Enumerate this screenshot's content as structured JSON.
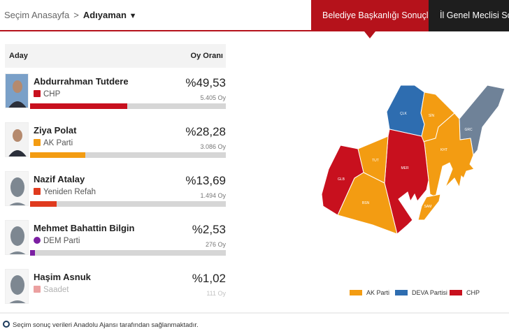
{
  "breadcrumb": {
    "home": "Seçim Anasayfa",
    "separator": ">",
    "current": "Adıyaman",
    "dropdown_icon": "▼"
  },
  "tabs": [
    {
      "label": "Belediye Başkanlığı Sonuçları",
      "active": true
    },
    {
      "label": "İl Genel Meclisi Sonuçları",
      "active": false
    }
  ],
  "table": {
    "col_candidate": "Aday",
    "col_rate": "Oy Oranı"
  },
  "candidates": [
    {
      "name": "Abdurrahman Tutdere",
      "party": "CHP",
      "percent": "%49,53",
      "votes": "5.405 Oy",
      "share": 49.53,
      "color": "#c8101e"
    },
    {
      "name": "Ziya Polat",
      "party": "AK Parti",
      "percent": "%28,28",
      "votes": "3.086 Oy",
      "share": 28.28,
      "color": "#f39c12"
    },
    {
      "name": "Nazif Atalay",
      "party": "Yeniden Refah",
      "percent": "%13,69",
      "votes": "1.494 Oy",
      "share": 13.69,
      "color": "#e03a1e"
    },
    {
      "name": "Mehmet Bahattin Bilgin",
      "party": "DEM Parti",
      "percent": "%2,53",
      "votes": "276 Oy",
      "share": 2.53,
      "color": "#7b1fa2"
    },
    {
      "name": "Haşim Asnuk",
      "party": "Saadet",
      "percent": "%1,02",
      "votes": "111 Oy",
      "share": 1.02,
      "color": "#d32f2f"
    }
  ],
  "map": {
    "districts": [
      {
        "code": "ÇLK",
        "party": "DEVA Partisi"
      },
      {
        "code": "SİN",
        "party": "AK Parti"
      },
      {
        "code": "GRC",
        "party": "other"
      },
      {
        "code": "KHT",
        "party": "AK Parti"
      },
      {
        "code": "SAM",
        "party": "AK Parti"
      },
      {
        "code": "MER",
        "party": "CHP"
      },
      {
        "code": "TUT",
        "party": "AK Parti"
      },
      {
        "code": "GLB",
        "party": "CHP"
      },
      {
        "code": "BSN",
        "party": "AK Parti"
      }
    ]
  },
  "legend": [
    {
      "label": "AK Parti",
      "color": "#f39c12"
    },
    {
      "label": "DEVA Partisi",
      "color": "#2e6db0"
    },
    {
      "label": "CHP",
      "color": "#c8101e"
    }
  ],
  "footer": {
    "icon": "anadolu-agency-logo",
    "text": "Seçim sonuç verileri Anadolu Ajansı tarafından sağlanmaktadır."
  }
}
